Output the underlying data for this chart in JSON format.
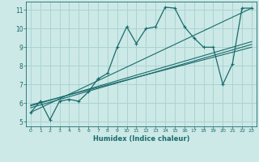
{
  "xlabel": "Humidex (Indice chaleur)",
  "bg_color": "#cce9e7",
  "grid_color": "#aad4d1",
  "line_color": "#1a6b6b",
  "xlim": [
    -0.5,
    23.5
  ],
  "ylim": [
    4.75,
    11.45
  ],
  "xticks": [
    0,
    1,
    2,
    3,
    4,
    5,
    6,
    7,
    8,
    9,
    10,
    11,
    12,
    13,
    14,
    15,
    16,
    17,
    18,
    19,
    20,
    21,
    22,
    23
  ],
  "yticks": [
    5,
    6,
    7,
    8,
    9,
    10,
    11
  ],
  "main_x": [
    0,
    1,
    2,
    3,
    4,
    5,
    6,
    7,
    8,
    9,
    10,
    11,
    12,
    13,
    14,
    15,
    16,
    17,
    18,
    19,
    20,
    21,
    22,
    23
  ],
  "main_y": [
    5.5,
    6.1,
    5.1,
    6.1,
    6.2,
    6.1,
    6.6,
    7.3,
    7.6,
    9.0,
    10.1,
    9.2,
    10.0,
    10.1,
    11.15,
    11.1,
    10.1,
    9.5,
    9.0,
    9.0,
    7.0,
    8.1,
    11.1,
    11.1
  ],
  "line1_x": [
    0,
    23
  ],
  "line1_y": [
    5.5,
    11.1
  ],
  "line2_x": [
    0,
    23
  ],
  "line2_y": [
    5.9,
    9.0
  ],
  "line3_x": [
    0,
    23
  ],
  "line3_y": [
    5.75,
    9.15
  ],
  "line4_x": [
    0,
    23
  ],
  "line4_y": [
    5.85,
    9.3
  ]
}
